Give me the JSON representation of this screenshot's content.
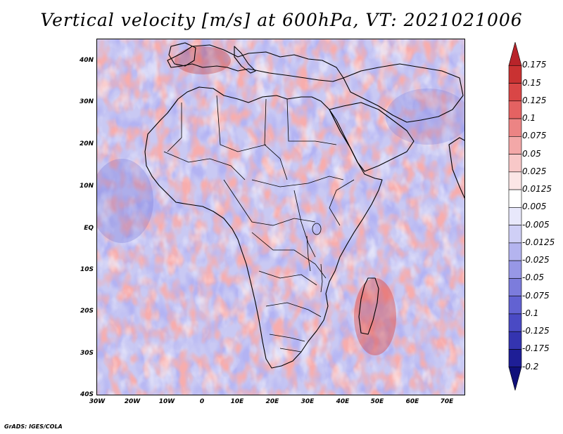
{
  "title": "Vertical velocity [m/s] at 600hPa, VT: 2021021006",
  "footer": "GrADS: IGES/COLA",
  "map": {
    "lon_range": [
      -30,
      75
    ],
    "lat_range": [
      -40,
      45
    ],
    "lat_labels": [
      "40N",
      "30N",
      "20N",
      "10N",
      "EQ",
      "10S",
      "20S",
      "30S",
      "40S"
    ],
    "lon_labels": [
      "30W",
      "20W",
      "10W",
      "0",
      "10E",
      "20E",
      "30E",
      "40E",
      "50E",
      "60E",
      "70E"
    ]
  },
  "colorbar": {
    "labels": [
      "0.175",
      "0.15",
      "0.125",
      "0.1",
      "0.075",
      "0.05",
      "0.025",
      "0.0125",
      "0.005",
      "-0.005",
      "-0.0125",
      "-0.025",
      "-0.05",
      "-0.075",
      "-0.1",
      "-0.125",
      "-0.175",
      "-0.2"
    ],
    "colors": [
      "#b8242a",
      "#c93232",
      "#d94646",
      "#e46262",
      "#ec8484",
      "#f3a8a8",
      "#f8c8c8",
      "#fce6e6",
      "#ffffff",
      "#e8e8fb",
      "#cfcff6",
      "#b4b4ef",
      "#9797e6",
      "#7c7cdc",
      "#6262d2",
      "#4a4ac4",
      "#3434b0",
      "#1e1e96",
      "#10107a"
    ]
  }
}
